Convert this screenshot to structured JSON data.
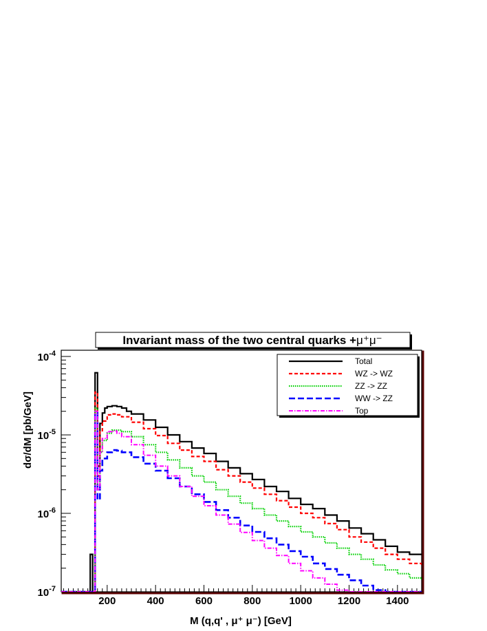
{
  "colors": {
    "total": "#000000",
    "wz": "#ff0000",
    "zz": "#00d000",
    "ww": "#0000ff",
    "top": "#ff00ff",
    "frame_shadow": "#5a0000"
  },
  "chart_data": {
    "type": "line",
    "title_main": "Invariant mass of the two central quarks +",
    "title_suffix": "μ⁺μ⁻",
    "xlabel": "M (q,q' , μ⁺ μ⁻)  [GeV]",
    "ylabel": "dσ/dM  [pb/GeV]",
    "xlim": [
      10,
      1500
    ],
    "ylim": [
      1e-07,
      0.00012
    ],
    "log_y": true,
    "x_ticks": [
      200,
      400,
      600,
      800,
      1000,
      1200,
      1400
    ],
    "x_tick_labels": [
      "200",
      "400",
      "600",
      "800",
      "1000",
      "1200",
      "1400"
    ],
    "y_ticks": [
      1e-07,
      1e-06,
      1e-05,
      0.0001
    ],
    "y_tick_labels": [
      {
        "base": "10",
        "exp": "-7"
      },
      {
        "base": "10",
        "exp": "-6"
      },
      {
        "base": "10",
        "exp": "-5"
      },
      {
        "base": "10",
        "exp": "-4"
      }
    ],
    "legend_position": "top-right",
    "series": [
      {
        "name": "Total",
        "style": "solid",
        "color": "#000000",
        "points": [
          [
            10,
            1e-07
          ],
          [
            125,
            1e-07
          ],
          [
            130,
            3e-07
          ],
          [
            140,
            1e-07
          ],
          [
            150,
            6.2e-05
          ],
          [
            160,
            4e-06
          ],
          [
            170,
            1.4e-05
          ],
          [
            180,
            1.9e-05
          ],
          [
            190,
            2.2e-05
          ],
          [
            200,
            2.3e-05
          ],
          [
            220,
            2.35e-05
          ],
          [
            240,
            2.3e-05
          ],
          [
            260,
            2.2e-05
          ],
          [
            280,
            2e-05
          ],
          [
            300,
            1.85e-05
          ],
          [
            350,
            1.55e-05
          ],
          [
            400,
            1.25e-05
          ],
          [
            450,
            1e-05
          ],
          [
            500,
            8.2e-06
          ],
          [
            550,
            6.8e-06
          ],
          [
            600,
            5.8e-06
          ],
          [
            650,
            4.6e-06
          ],
          [
            700,
            3.8e-06
          ],
          [
            750,
            3.2e-06
          ],
          [
            800,
            2.7e-06
          ],
          [
            850,
            2.2e-06
          ],
          [
            900,
            1.9e-06
          ],
          [
            950,
            1.55e-06
          ],
          [
            1000,
            1.3e-06
          ],
          [
            1050,
            1.15e-06
          ],
          [
            1100,
            9.5e-07
          ],
          [
            1150,
            8e-07
          ],
          [
            1200,
            6.5e-07
          ],
          [
            1250,
            5.5e-07
          ],
          [
            1300,
            4.6e-07
          ],
          [
            1350,
            3.8e-07
          ],
          [
            1400,
            3.2e-07
          ],
          [
            1450,
            3e-07
          ],
          [
            1500,
            3e-07
          ]
        ]
      },
      {
        "name": "WZ -> WZ",
        "style": "dashed",
        "color": "#ff0000",
        "points": [
          [
            10,
            1e-07
          ],
          [
            140,
            1e-07
          ],
          [
            150,
            3.5e-05
          ],
          [
            160,
            3e-06
          ],
          [
            170,
            1.1e-05
          ],
          [
            180,
            1.5e-05
          ],
          [
            200,
            1.8e-05
          ],
          [
            220,
            1.85e-05
          ],
          [
            240,
            1.8e-05
          ],
          [
            260,
            1.7e-05
          ],
          [
            300,
            1.45e-05
          ],
          [
            350,
            1.2e-05
          ],
          [
            400,
            9.8e-06
          ],
          [
            450,
            7.8e-06
          ],
          [
            500,
            6.4e-06
          ],
          [
            550,
            5.3e-06
          ],
          [
            600,
            4.6e-06
          ],
          [
            650,
            3.6e-06
          ],
          [
            700,
            3e-06
          ],
          [
            750,
            2.5e-06
          ],
          [
            800,
            2.1e-06
          ],
          [
            850,
            1.75e-06
          ],
          [
            900,
            1.45e-06
          ],
          [
            950,
            1.2e-06
          ],
          [
            1000,
            1e-06
          ],
          [
            1050,
            8.8e-07
          ],
          [
            1100,
            7.4e-07
          ],
          [
            1150,
            6.2e-07
          ],
          [
            1200,
            5e-07
          ],
          [
            1250,
            4.3e-07
          ],
          [
            1300,
            3.6e-07
          ],
          [
            1350,
            3e-07
          ],
          [
            1400,
            2.6e-07
          ],
          [
            1450,
            2.3e-07
          ],
          [
            1500,
            2.2e-07
          ]
        ]
      },
      {
        "name": "ZZ -> ZZ",
        "style": "dotted",
        "color": "#00d000",
        "points": [
          [
            10,
            1e-07
          ],
          [
            140,
            1e-07
          ],
          [
            150,
            2.2e-05
          ],
          [
            160,
            2e-06
          ],
          [
            170,
            6e-06
          ],
          [
            180,
            8.5e-06
          ],
          [
            200,
            1.05e-05
          ],
          [
            220,
            1.15e-05
          ],
          [
            240,
            1.15e-05
          ],
          [
            260,
            1.1e-05
          ],
          [
            300,
            9.5e-06
          ],
          [
            350,
            7.5e-06
          ],
          [
            400,
            6e-06
          ],
          [
            450,
            4.8e-06
          ],
          [
            500,
            3.8e-06
          ],
          [
            550,
            3e-06
          ],
          [
            600,
            2.5e-06
          ],
          [
            650,
            2e-06
          ],
          [
            700,
            1.65e-06
          ],
          [
            750,
            1.35e-06
          ],
          [
            800,
            1.15e-06
          ],
          [
            850,
            9.5e-07
          ],
          [
            900,
            8e-07
          ],
          [
            950,
            6.8e-07
          ],
          [
            1000,
            5.8e-07
          ],
          [
            1050,
            5e-07
          ],
          [
            1100,
            4.2e-07
          ],
          [
            1150,
            3.6e-07
          ],
          [
            1200,
            3e-07
          ],
          [
            1250,
            2.6e-07
          ],
          [
            1300,
            2.2e-07
          ],
          [
            1350,
            1.9e-07
          ],
          [
            1400,
            1.7e-07
          ],
          [
            1450,
            1.5e-07
          ],
          [
            1500,
            1.4e-07
          ]
        ]
      },
      {
        "name": "WW -> ZZ",
        "style": "longdash",
        "color": "#0000ff",
        "points": [
          [
            10,
            1e-07
          ],
          [
            140,
            1e-07
          ],
          [
            150,
            1.9e-05
          ],
          [
            160,
            1.5e-06
          ],
          [
            170,
            3.5e-06
          ],
          [
            180,
            5e-06
          ],
          [
            200,
            6e-06
          ],
          [
            220,
            6.4e-06
          ],
          [
            240,
            6.3e-06
          ],
          [
            260,
            6e-06
          ],
          [
            300,
            5.2e-06
          ],
          [
            350,
            4.3e-06
          ],
          [
            400,
            3.5e-06
          ],
          [
            450,
            2.8e-06
          ],
          [
            500,
            2.2e-06
          ],
          [
            550,
            1.75e-06
          ],
          [
            600,
            1.4e-06
          ],
          [
            650,
            1.1e-06
          ],
          [
            700,
            8.8e-07
          ],
          [
            750,
            7e-07
          ],
          [
            800,
            5.8e-07
          ],
          [
            850,
            4.8e-07
          ],
          [
            900,
            4e-07
          ],
          [
            950,
            3.3e-07
          ],
          [
            1000,
            2.8e-07
          ],
          [
            1050,
            2.3e-07
          ],
          [
            1100,
            1.95e-07
          ],
          [
            1150,
            1.65e-07
          ],
          [
            1200,
            1.4e-07
          ],
          [
            1250,
            1.2e-07
          ],
          [
            1300,
            1.05e-07
          ],
          [
            1350,
            1e-07
          ],
          [
            1500,
            1e-07
          ]
        ]
      },
      {
        "name": "Top",
        "style": "dashdot",
        "color": "#ff00ff",
        "points": [
          [
            10,
            1e-07
          ],
          [
            140,
            1e-07
          ],
          [
            150,
            2e-05
          ],
          [
            160,
            2e-06
          ],
          [
            170,
            6e-06
          ],
          [
            180,
            9e-06
          ],
          [
            200,
            1.1e-05
          ],
          [
            220,
            1.12e-05
          ],
          [
            240,
            1.05e-05
          ],
          [
            260,
            9.5e-06
          ],
          [
            300,
            7.5e-06
          ],
          [
            350,
            5.5e-06
          ],
          [
            400,
            4e-06
          ],
          [
            450,
            3e-06
          ],
          [
            500,
            2.2e-06
          ],
          [
            550,
            1.65e-06
          ],
          [
            600,
            1.25e-06
          ],
          [
            650,
            9.5e-07
          ],
          [
            700,
            7.3e-07
          ],
          [
            750,
            5.7e-07
          ],
          [
            800,
            4.5e-07
          ],
          [
            850,
            3.6e-07
          ],
          [
            900,
            2.9e-07
          ],
          [
            950,
            2.3e-07
          ],
          [
            1000,
            1.85e-07
          ],
          [
            1050,
            1.5e-07
          ],
          [
            1100,
            1.25e-07
          ],
          [
            1150,
            1.05e-07
          ],
          [
            1200,
            1e-07
          ],
          [
            1500,
            1e-07
          ]
        ]
      }
    ]
  }
}
